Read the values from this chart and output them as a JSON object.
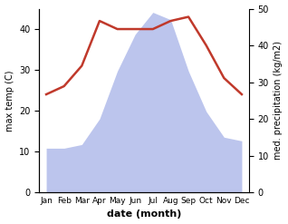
{
  "months": [
    "Jan",
    "Feb",
    "Mar",
    "Apr",
    "May",
    "Jun",
    "Jul",
    "Aug",
    "Sep",
    "Oct",
    "Nov",
    "Dec"
  ],
  "temperature": [
    24,
    26,
    31,
    42,
    40,
    40,
    40,
    42,
    43,
    36,
    28,
    24
  ],
  "precipitation": [
    12,
    12,
    13,
    20,
    33,
    43,
    49,
    47,
    33,
    22,
    15,
    14
  ],
  "temp_color": "#c0392b",
  "precip_fill_color": "#bcc5ed",
  "xlabel": "date (month)",
  "ylabel_left": "max temp (C)",
  "ylabel_right": "med. precipitation (kg/m2)",
  "ylim_left": [
    0,
    45
  ],
  "ylim_right": [
    0,
    50
  ],
  "yticks_left": [
    0,
    10,
    20,
    30,
    40
  ],
  "yticks_right": [
    0,
    10,
    20,
    30,
    40,
    50
  ],
  "background_color": "#ffffff",
  "xlabel_fontsize": 8,
  "ylabel_fontsize": 7,
  "tick_fontsize": 7,
  "month_fontsize": 6.5,
  "line_width": 1.8
}
